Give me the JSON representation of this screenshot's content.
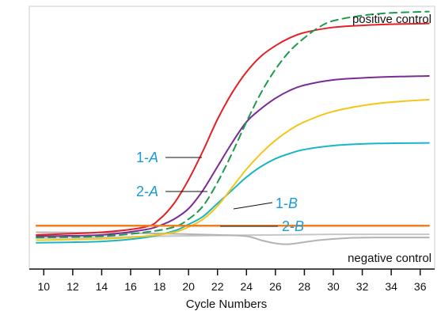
{
  "chart_data": {
    "type": "line",
    "title": "",
    "xlabel": "Cycle Numbers",
    "ylabel": "",
    "xlim": [
      9,
      37
    ],
    "ylim": [
      0,
      1
    ],
    "x_ticks": [
      10,
      12,
      14,
      16,
      18,
      20,
      22,
      24,
      26,
      28,
      30,
      32,
      34,
      36
    ],
    "grid": false,
    "annotations": {
      "positive": "positive control",
      "negative": "negative control"
    },
    "label_prefix": {
      "s1A": "1-",
      "s2A": "2-",
      "s1B": "1-",
      "s2B": "2-"
    },
    "label_suffix": {
      "s1A": "A",
      "s2A": "A",
      "s1B": "B",
      "s2B": "B"
    },
    "series": [
      {
        "id": "s1A",
        "color": "#e32227",
        "dashed": false,
        "x": [
          9.5,
          14,
          17,
          18,
          19,
          20,
          21,
          22,
          23,
          24,
          25,
          26,
          27,
          28,
          30,
          33,
          36.6
        ],
        "y": [
          0.13,
          0.14,
          0.16,
          0.19,
          0.25,
          0.34,
          0.45,
          0.57,
          0.67,
          0.75,
          0.81,
          0.85,
          0.88,
          0.9,
          0.92,
          0.93,
          0.935
        ]
      },
      {
        "id": "s2A",
        "color": "#7b2b96",
        "dashed": false,
        "x": [
          9.5,
          14,
          17,
          18,
          19,
          20,
          21,
          22,
          23,
          24,
          25,
          26,
          27,
          28,
          30,
          33,
          36.6
        ],
        "y": [
          0.125,
          0.13,
          0.15,
          0.165,
          0.19,
          0.23,
          0.3,
          0.39,
          0.48,
          0.56,
          0.61,
          0.65,
          0.68,
          0.7,
          0.72,
          0.73,
          0.735
        ]
      },
      {
        "id": "positive-control",
        "color": "#1c9b4b",
        "dashed": true,
        "x": [
          9.5,
          14,
          17,
          19,
          20,
          21,
          22,
          23,
          24,
          25,
          26,
          27,
          28,
          29,
          30,
          32,
          34,
          36.6
        ],
        "y": [
          0.12,
          0.125,
          0.14,
          0.16,
          0.19,
          0.24,
          0.33,
          0.44,
          0.56,
          0.67,
          0.76,
          0.83,
          0.88,
          0.92,
          0.945,
          0.965,
          0.975,
          0.98
        ]
      },
      {
        "id": "s1B",
        "color": "#f5c518",
        "dashed": false,
        "x": [
          9.5,
          14,
          17,
          19,
          20,
          21,
          22,
          23,
          24,
          25,
          26,
          27,
          28,
          30,
          33,
          36.6
        ],
        "y": [
          0.11,
          0.115,
          0.125,
          0.14,
          0.16,
          0.19,
          0.24,
          0.31,
          0.38,
          0.44,
          0.49,
          0.53,
          0.56,
          0.6,
          0.63,
          0.645
        ]
      },
      {
        "id": "s2B",
        "color": "#1bb5c8",
        "dashed": false,
        "x": [
          9.5,
          14,
          17,
          19,
          20,
          21,
          22,
          23,
          24,
          25,
          26,
          27,
          28,
          30,
          33,
          36.6
        ],
        "y": [
          0.1,
          0.105,
          0.12,
          0.145,
          0.17,
          0.2,
          0.25,
          0.3,
          0.35,
          0.39,
          0.42,
          0.44,
          0.455,
          0.47,
          0.478,
          0.48
        ]
      },
      {
        "id": "threshold",
        "color": "#f07f1f",
        "dashed": false,
        "x": [
          9.5,
          36.6
        ],
        "y": [
          0.165,
          0.165
        ]
      },
      {
        "id": "negative-control",
        "color": "#b3b3b3",
        "dashed": false,
        "x": [
          9.5,
          14,
          18,
          22,
          24,
          25,
          26,
          27,
          29,
          31,
          33,
          36.6
        ],
        "y": [
          0.14,
          0.138,
          0.135,
          0.13,
          0.125,
          0.11,
          0.098,
          0.095,
          0.11,
          0.118,
          0.12,
          0.12
        ]
      },
      {
        "id": "negative-control-2",
        "color": "#c7c7c7",
        "dashed": false,
        "x": [
          9.5,
          14,
          18,
          22,
          26,
          30,
          36.6
        ],
        "y": [
          0.118,
          0.12,
          0.125,
          0.128,
          0.13,
          0.132,
          0.132
        ]
      }
    ]
  }
}
